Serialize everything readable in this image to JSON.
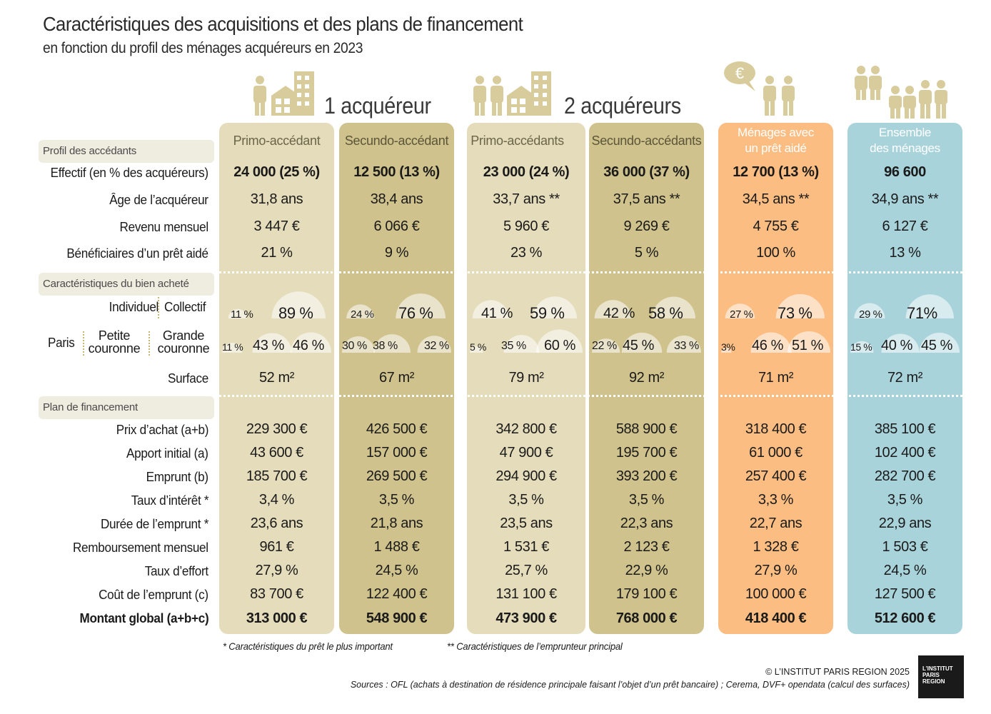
{
  "title": "Caractéristiques des acquisitions et des plans de financement",
  "subtitle": "en fonction du profil des ménages acquéreurs en 2023",
  "groups": {
    "one": "1 acquéreur",
    "two": "2 acquéreurs"
  },
  "sections": {
    "profil": "Profil des accédants",
    "bien": "Caractéristiques du bien acheté",
    "plan": "Plan de financement"
  },
  "row_labels": {
    "effectif": "Effectif  (en % des acquéreurs)",
    "age": "Âge de l’acquéreur",
    "revenu": "Revenu mensuel",
    "beneficiaires": "Bénéficiaires d’un prêt aidé",
    "individuel": "Individuel",
    "collectif": "Collectif",
    "paris": "Paris",
    "petite1": "Petite",
    "petite2": "couronne",
    "grande1": "Grande",
    "grande2": "couronne",
    "surface": "Surface",
    "prix": "Prix d’achat (a+b)",
    "apport": "Apport initial (a)",
    "emprunt": "Emprunt (b)",
    "taux": "Taux d’intérêt *",
    "duree": "Durée de l’emprunt *",
    "remboursement": "Remboursement mensuel",
    "effort": "Taux d’effort",
    "cout": "Coût de l’emprunt (c)",
    "montant": "Montant global (a+b+c)"
  },
  "columns": [
    {
      "head1": "Primo-accédant",
      "head2": "",
      "effectif": "24 000  (25 %)",
      "age": "31,8 ans",
      "revenu": "3 447 €",
      "beneficiaires": "21 %",
      "type_ind": "11 %",
      "type_col": "89 %",
      "loc_paris": "11 %",
      "loc_petite": "43 %",
      "loc_grande": "46 %",
      "surface": "52 m²",
      "prix": "229 300 €",
      "apport": "43 600 €",
      "emprunt": "185 700 €",
      "taux": "3,4 %",
      "duree": "23,6 ans",
      "remboursement": "961 €",
      "effort": "27,9 %",
      "cout": "83 700 €",
      "montant": "313 000 €"
    },
    {
      "head1": "Secundo-accédant",
      "head2": "",
      "effectif": "12 500  (13 %)",
      "age": "38,4 ans",
      "revenu": "6 066 €",
      "beneficiaires": "9 %",
      "type_ind": "24 %",
      "type_col": "76 %",
      "loc_paris": "30 %",
      "loc_petite": "38 %",
      "loc_grande": "32 %",
      "surface": "67 m²",
      "prix": "426 500 €",
      "apport": "157 000 €",
      "emprunt": "269 500 €",
      "taux": "3,5 %",
      "duree": "21,8 ans",
      "remboursement": "1 488 €",
      "effort": "24,5 %",
      "cout": "122 400 €",
      "montant": "548 900 €"
    },
    {
      "head1": "Primo-accédants",
      "head2": "",
      "effectif": "23 000  (24 %)",
      "age": "33,7 ans **",
      "revenu": "5 960 €",
      "beneficiaires": "23 %",
      "type_ind": "41 %",
      "type_col": "59 %",
      "loc_paris": "5 %",
      "loc_petite": "35 %",
      "loc_grande": "60 %",
      "surface": "79 m²",
      "prix": "342 800 €",
      "apport": "47 900 €",
      "emprunt": "294 900 €",
      "taux": "3,5 %",
      "duree": "23,5 ans",
      "remboursement": "1 531 €",
      "effort": "25,7 %",
      "cout": "131 100 €",
      "montant": "473 900 €"
    },
    {
      "head1": "Secundo-accédants",
      "head2": "",
      "effectif": "36 000  (37 %)",
      "age": "37,5 ans **",
      "revenu": "9 269 €",
      "beneficiaires": "5 %",
      "type_ind": "42 %",
      "type_col": "58 %",
      "loc_paris": "22 %",
      "loc_petite": "45 %",
      "loc_grande": "33 %",
      "surface": "92 m²",
      "prix": "588 900 €",
      "apport": "195 700 €",
      "emprunt": "393 200 €",
      "taux": "3,5 %",
      "duree": "22,3 ans",
      "remboursement": "2 123 €",
      "effort": "22,9 %",
      "cout": "179 100 €",
      "montant": "768 000 €"
    },
    {
      "head1": "Ménages avec",
      "head2": "un prêt aidé",
      "effectif": "12 700  (13 %)",
      "age": "34,5 ans **",
      "revenu": "4 755 €",
      "beneficiaires": "100 %",
      "type_ind": "27 %",
      "type_col": "73 %",
      "loc_paris": "3%",
      "loc_petite": "46 %",
      "loc_grande": "51 %",
      "surface": "71 m²",
      "prix": "318 400 €",
      "apport": "61 000 €",
      "emprunt": "257 400 €",
      "taux": "3,3 %",
      "duree": "22,7 ans",
      "remboursement": "1 328 €",
      "effort": "27,9 %",
      "cout": "100 000 €",
      "montant": "418 400 €"
    },
    {
      "head1": "Ensemble",
      "head2": "des ménages",
      "effectif": "96 600",
      "age": "34,9 ans **",
      "revenu": "6 127 €",
      "beneficiaires": "13 %",
      "type_ind": "29 %",
      "type_col": "71%",
      "loc_paris": "15 %",
      "loc_petite": "40 %",
      "loc_grande": "45 %",
      "surface": "72 m²",
      "prix": "385 100 €",
      "apport": "102 400 €",
      "emprunt": "282 700 €",
      "taux": "3,5 %",
      "duree": "22,9 ans",
      "remboursement": "1 503 €",
      "effort": "24,5 %",
      "cout": "127 500 €",
      "montant": "512 600 €"
    }
  ],
  "colors": {
    "primo1": "#e4dcba",
    "secundo1": "#cfc28c",
    "primo2": "#e4dcba",
    "secundo2": "#cfc28c",
    "aide": "#fbbd82",
    "aide_head": "#f09a4a",
    "ensemble": "#a9d3da",
    "ensemble_head": "#7bbdc8",
    "icon": "#d8cc9c"
  },
  "chart_data": {
    "type": "table",
    "title": "Caractéristiques des acquisitions et des plans de financement",
    "subtitle": "en fonction du profil des ménages acquéreurs en 2023",
    "categories": [
      "Primo-accédant",
      "Secundo-accédant",
      "Primo-accédants",
      "Secundo-accédants",
      "Ménages avec un prêt aidé",
      "Ensemble des ménages"
    ],
    "series": [
      {
        "name": "Effectif",
        "values": [
          24000,
          12500,
          23000,
          36000,
          12700,
          96600
        ]
      },
      {
        "name": "Effectif (en % des acquéreurs)",
        "values": [
          25,
          13,
          24,
          37,
          13,
          null
        ]
      },
      {
        "name": "Âge de l’acquéreur",
        "values": [
          31.8,
          38.4,
          33.7,
          37.5,
          34.5,
          34.9
        ]
      },
      {
        "name": "Revenu mensuel",
        "values": [
          3447,
          6066,
          5960,
          9269,
          4755,
          6127
        ]
      },
      {
        "name": "Bénéficiaires d’un prêt aidé",
        "values": [
          21,
          9,
          23,
          5,
          100,
          13
        ]
      },
      {
        "name": "Individuel",
        "values": [
          11,
          24,
          41,
          42,
          27,
          29
        ]
      },
      {
        "name": "Collectif",
        "values": [
          89,
          76,
          59,
          58,
          73,
          71
        ]
      },
      {
        "name": "Paris",
        "values": [
          11,
          30,
          5,
          22,
          3,
          15
        ]
      },
      {
        "name": "Petite couronne",
        "values": [
          43,
          38,
          35,
          45,
          46,
          40
        ]
      },
      {
        "name": "Grande couronne",
        "values": [
          46,
          32,
          60,
          33,
          51,
          45
        ]
      },
      {
        "name": "Surface",
        "values": [
          52,
          67,
          79,
          92,
          71,
          72
        ]
      },
      {
        "name": "Prix d’achat (a+b)",
        "values": [
          229300,
          426500,
          342800,
          588900,
          318400,
          385100
        ]
      },
      {
        "name": "Apport initial (a)",
        "values": [
          43600,
          157000,
          47900,
          195700,
          61000,
          102400
        ]
      },
      {
        "name": "Emprunt (b)",
        "values": [
          185700,
          269500,
          294900,
          393200,
          257400,
          282700
        ]
      },
      {
        "name": "Taux d’intérêt *",
        "values": [
          3.4,
          3.5,
          3.5,
          3.5,
          3.3,
          3.5
        ]
      },
      {
        "name": "Durée de l’emprunt *",
        "values": [
          23.6,
          21.8,
          23.5,
          22.3,
          22.7,
          22.9
        ]
      },
      {
        "name": "Remboursement mensuel",
        "values": [
          961,
          1488,
          1531,
          2123,
          1328,
          1503
        ]
      },
      {
        "name": "Taux d’effort",
        "values": [
          27.9,
          24.5,
          25.7,
          22.9,
          27.9,
          24.5
        ]
      },
      {
        "name": "Coût de l’emprunt (c)",
        "values": [
          83700,
          122400,
          131100,
          179100,
          100000,
          127500
        ]
      },
      {
        "name": "Montant global (a+b+c)",
        "values": [
          313000,
          548900,
          473900,
          768000,
          418400,
          512600
        ]
      }
    ]
  },
  "notes": {
    "note1": "* Caractéristiques du prêt le plus important",
    "note2": "** Caractéristiques de l’emprunteur principal",
    "copyright": "© L’INSTITUT PARIS REGION 2025",
    "sources": "Sources : OFL (achats à destination de résidence principale faisant l’objet d’un prêt bancaire) ; Cerema, DVF+ opendata (calcul des surfaces)",
    "logo1": "L’INSTITUT",
    "logo2": "PARIS",
    "logo3": "REGION"
  }
}
